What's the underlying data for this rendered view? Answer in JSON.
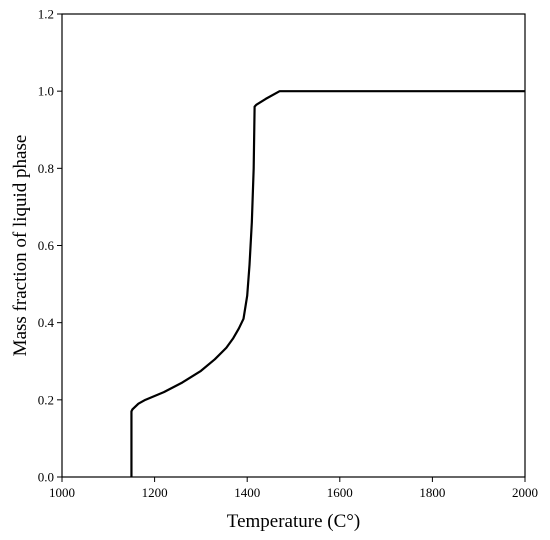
{
  "chart_data": {
    "type": "line",
    "title": "",
    "xlabel": "Temperature (C°)",
    "ylabel": "Mass fraction of liquid phase",
    "xlim": [
      1000,
      2000
    ],
    "ylim": [
      0.0,
      1.2
    ],
    "x_ticks": [
      "1000",
      "1200",
      "1400",
      "1600",
      "1800",
      "2000"
    ],
    "y_ticks": [
      "0.0",
      "0.2",
      "0.4",
      "0.6",
      "0.8",
      "1.0",
      "1.2"
    ],
    "grid": false,
    "legend": "none",
    "line_color": "#000000",
    "series": [
      {
        "x": [
          1150,
          1150,
          1152,
          1165,
          1180,
          1220,
          1260,
          1300,
          1330,
          1355,
          1370,
          1382,
          1392,
          1400,
          1405,
          1410,
          1414,
          1416,
          1420,
          1440,
          1470,
          1600,
          1800,
          2000
        ],
        "y": [
          0.0,
          0.17,
          0.175,
          0.19,
          0.2,
          0.22,
          0.245,
          0.275,
          0.305,
          0.335,
          0.36,
          0.385,
          0.41,
          0.47,
          0.55,
          0.66,
          0.8,
          0.96,
          0.965,
          0.98,
          1.0,
          1.0,
          1.0,
          1.0
        ]
      }
    ]
  }
}
